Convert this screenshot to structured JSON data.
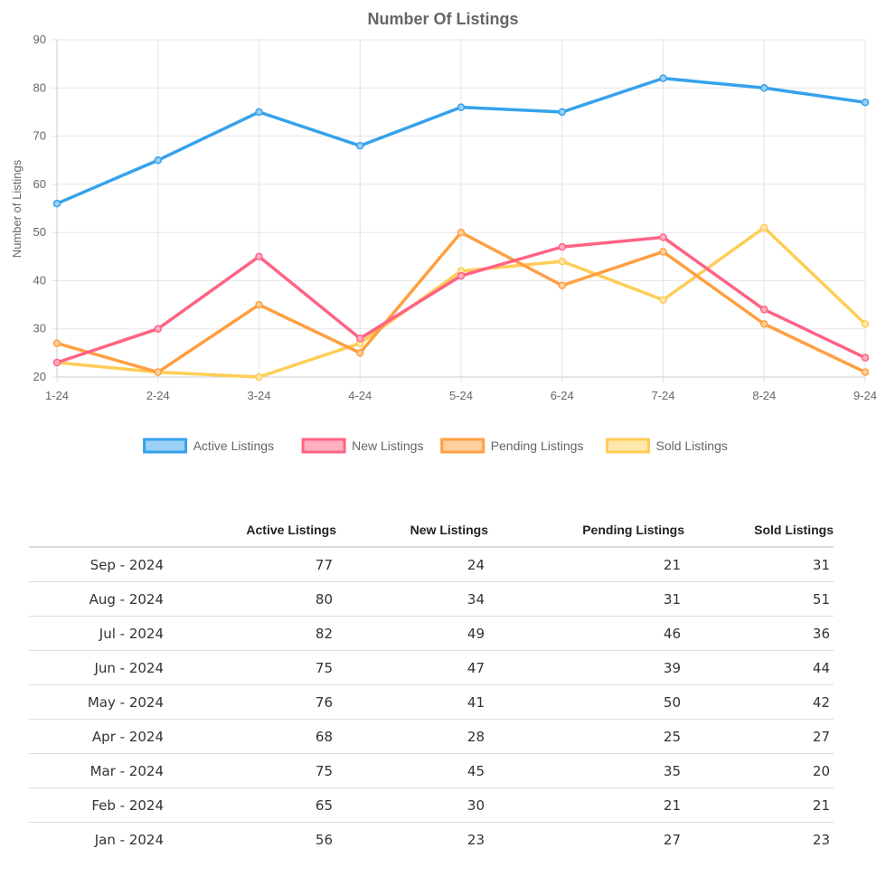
{
  "chart_data": {
    "type": "line",
    "title": "Number Of Listings",
    "xlabel": "",
    "ylabel": "Number of Listings",
    "categories": [
      "1-24",
      "2-24",
      "3-24",
      "4-24",
      "5-24",
      "6-24",
      "7-24",
      "8-24",
      "9-24"
    ],
    "ylim": [
      20,
      90
    ],
    "yticks": [
      20,
      30,
      40,
      50,
      60,
      70,
      80,
      90
    ],
    "grid": true,
    "legend_position": "bottom",
    "series": [
      {
        "name": "Active Listings",
        "color": "#36a2eb",
        "fill": "#9ad0f5",
        "values": [
          56,
          65,
          75,
          68,
          76,
          75,
          82,
          80,
          77
        ]
      },
      {
        "name": "New Listings",
        "color": "#ff6384",
        "fill": "#ffb1c1",
        "values": [
          23,
          30,
          45,
          28,
          41,
          47,
          49,
          34,
          24
        ]
      },
      {
        "name": "Pending Listings",
        "color": "#ff9f40",
        "fill": "#ffcf9f",
        "values": [
          27,
          21,
          35,
          25,
          50,
          39,
          46,
          31,
          21
        ]
      },
      {
        "name": "Sold Listings",
        "color": "#ffcd56",
        "fill": "#ffe6aa",
        "values": [
          23,
          21,
          20,
          27,
          42,
          44,
          36,
          51,
          31
        ]
      }
    ]
  },
  "table": {
    "headers": [
      "",
      "Active Listings",
      "New Listings",
      "Pending Listings",
      "Sold Listings"
    ],
    "rows": [
      [
        "Sep - 2024",
        "77",
        "24",
        "21",
        "31"
      ],
      [
        "Aug - 2024",
        "80",
        "34",
        "31",
        "51"
      ],
      [
        "Jul - 2024",
        "82",
        "49",
        "46",
        "36"
      ],
      [
        "Jun - 2024",
        "75",
        "47",
        "39",
        "44"
      ],
      [
        "May - 2024",
        "76",
        "41",
        "50",
        "42"
      ],
      [
        "Apr - 2024",
        "68",
        "28",
        "25",
        "27"
      ],
      [
        "Mar - 2024",
        "75",
        "45",
        "35",
        "20"
      ],
      [
        "Feb - 2024",
        "65",
        "30",
        "21",
        "21"
      ],
      [
        "Jan - 2024",
        "56",
        "23",
        "27",
        "23"
      ]
    ]
  }
}
